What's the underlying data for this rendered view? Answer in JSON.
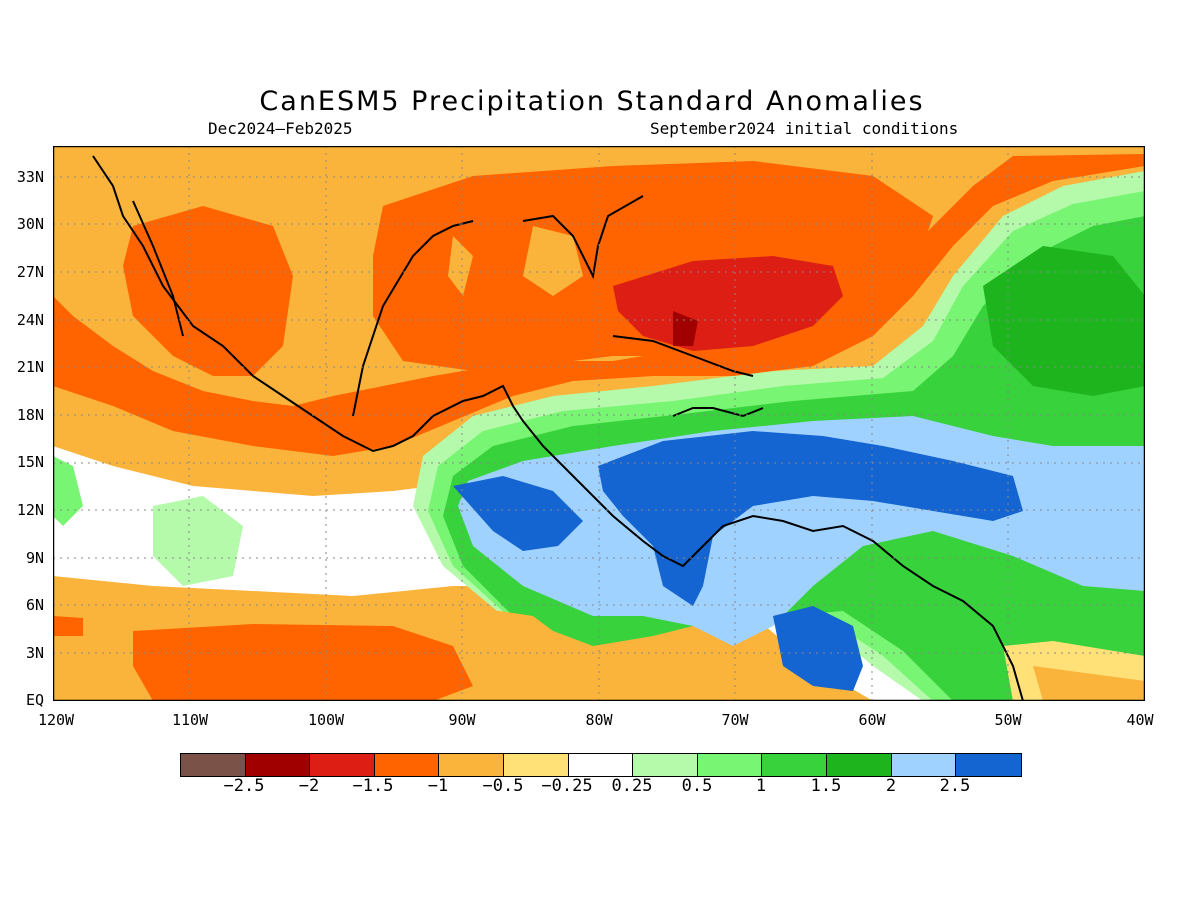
{
  "title": "CanESM5 Precipitation Standard Anomalies",
  "subtitle_left": "Dec2024–Feb2025",
  "subtitle_right": "September2024 initial conditions",
  "map": {
    "lat_labels": [
      "33N",
      "30N",
      "27N",
      "24N",
      "21N",
      "18N",
      "15N",
      "12N",
      "9N",
      "6N",
      "3N",
      "EQ"
    ],
    "lon_labels": [
      "120W",
      "110W",
      "100W",
      "90W",
      "80W",
      "70W",
      "60W",
      "50W",
      "40W"
    ]
  },
  "legend": {
    "colors": [
      "#7a5248",
      "#a00000",
      "#dc1e14",
      "#ff6400",
      "#fab43c",
      "#ffe178",
      "#ffffff",
      "#b4faaa",
      "#78f573",
      "#37d23c",
      "#1eb41e",
      "#a0d2ff",
      "#1464d2"
    ],
    "labels": [
      "−2.5",
      "−2",
      "−1.5",
      "−1",
      "−0.5",
      "−0.25",
      "0.25",
      "0.5",
      "1",
      "1.5",
      "2",
      "2.5"
    ]
  }
}
